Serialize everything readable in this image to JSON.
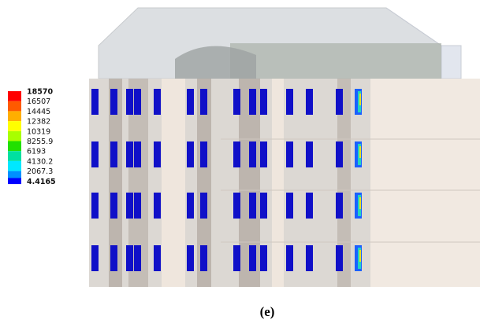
{
  "legend": {
    "labels": [
      18570,
      16507,
      14445,
      12382,
      10319,
      8255.9,
      6193,
      4130.2,
      2067.3,
      4.4165
    ]
  },
  "caption": "(e)"
}
